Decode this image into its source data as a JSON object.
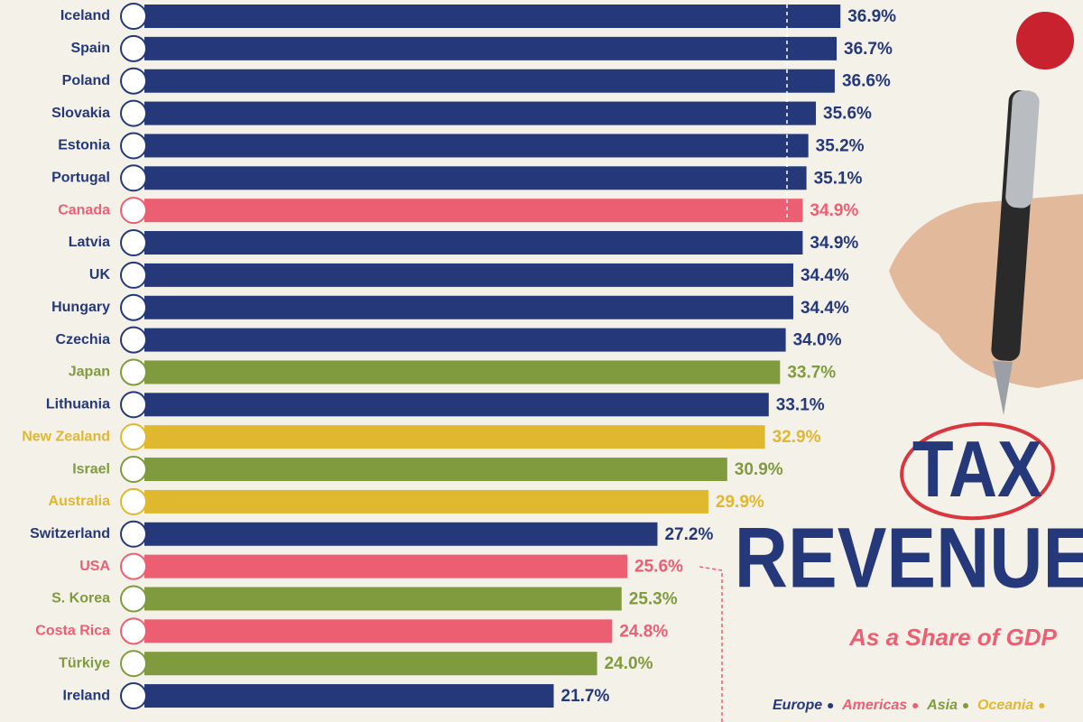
{
  "chart_data": {
    "type": "hbar",
    "title": "TAX",
    "title_line2": "REVENUE",
    "subtitle": "As a Share of GDP",
    "categories": [
      "Iceland",
      "Spain",
      "Poland",
      "Slovakia",
      "Estonia",
      "Portugal",
      "Canada",
      "Latvia",
      "UK",
      "Hungary",
      "Czechia",
      "Japan",
      "Lithuania",
      "New Zealand",
      "Israel",
      "Australia",
      "Switzerland",
      "USA",
      "S. Korea",
      "Costa Rica",
      "Türkiye",
      "Ireland"
    ],
    "values": [
      36.9,
      36.7,
      36.6,
      35.6,
      35.2,
      35.1,
      34.9,
      34.9,
      34.4,
      34.4,
      34.0,
      33.7,
      33.1,
      32.9,
      30.9,
      29.9,
      27.2,
      25.6,
      25.3,
      24.8,
      24.0,
      21.7
    ],
    "value_labels": [
      "36.9%",
      "36.7%",
      "36.6%",
      "35.6%",
      "35.2%",
      "35.1%",
      "34.9%",
      "34.9%",
      "34.4%",
      "34.4%",
      "34.0%",
      "33.7%",
      "33.1%",
      "32.9%",
      "30.9%",
      "29.9%",
      "27.2%",
      "25.6%",
      "25.3%",
      "24.8%",
      "24.0%",
      "21.7%"
    ],
    "colors": [
      "#25397a",
      "#25397a",
      "#25397a",
      "#25397a",
      "#25397a",
      "#25397a",
      "#ec5f73",
      "#25397a",
      "#25397a",
      "#25397a",
      "#25397a",
      "#7f9b3d",
      "#25397a",
      "#dfb82f",
      "#7f9b3d",
      "#dfb82f",
      "#25397a",
      "#ec5f73",
      "#7f9b3d",
      "#ec5f73",
      "#7f9b3d",
      "#25397a"
    ],
    "legend": [
      {
        "name": "Europe",
        "color": "#25397a"
      },
      {
        "name": "Americas",
        "color": "#ec5f73"
      },
      {
        "name": "Asia",
        "color": "#7f9b3d"
      },
      {
        "name": "Oceania",
        "color": "#dfb82f"
      }
    ]
  }
}
